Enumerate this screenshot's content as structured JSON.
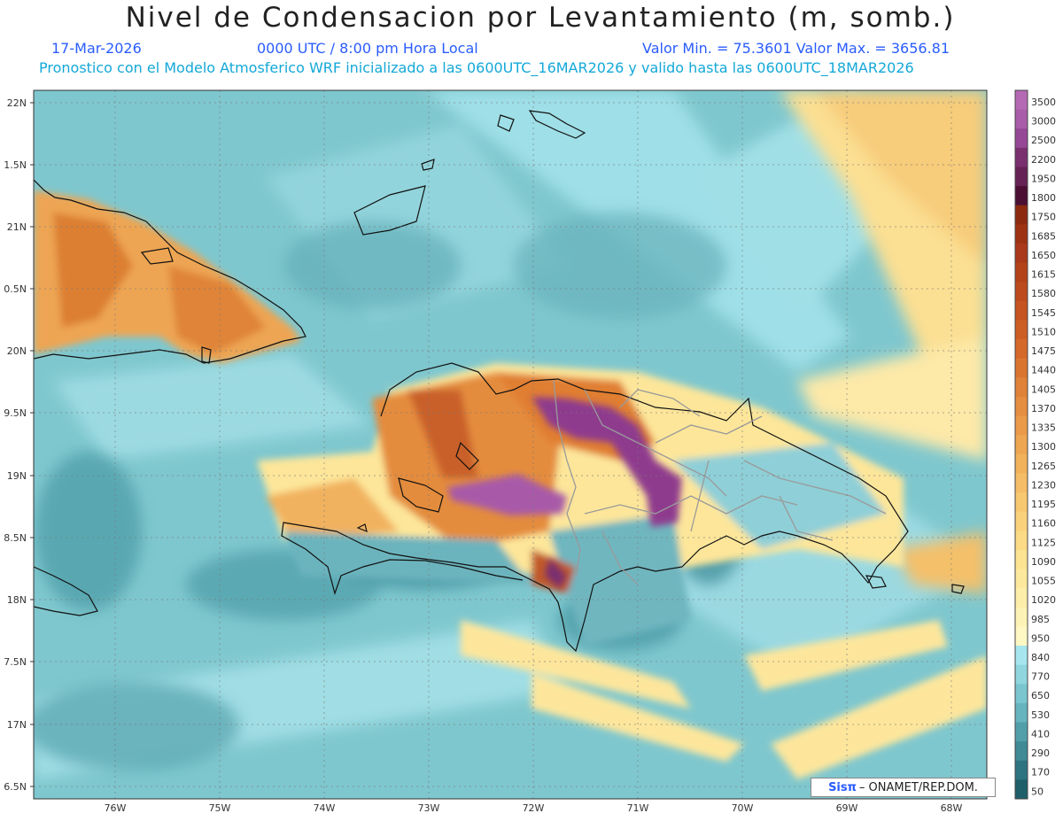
{
  "header": {
    "title": "Nivel de Condensacion por Levantamiento (m, somb.)",
    "date": "17-Mar-2026",
    "time": "0000 UTC / 8:00 pm Hora Local",
    "minmax": "Valor Min. = 75.3601   Valor Max. = 3656.81",
    "model_info": "Pronostico con el Modelo Atmosferico WRF inicializado a las 0600UTC_16MAR2026 y valido hasta las  0600UTC_18MAR2026"
  },
  "axes": {
    "lat_labels": [
      "22N",
      "1.5N",
      "21N",
      "0.5N",
      "20N",
      "9.5N",
      "19N",
      "8.5N",
      "18N",
      "7.5N",
      "17N",
      "6.5N"
    ],
    "lon_labels": [
      "76W",
      "75W",
      "74W",
      "73W",
      "72W",
      "71W",
      "70W",
      "69W",
      "68W"
    ]
  },
  "colorbar": {
    "labels": [
      "3500",
      "3000",
      "2500",
      "2200",
      "1950",
      "1800",
      "1750",
      "1685",
      "1650",
      "1615",
      "1580",
      "1545",
      "1510",
      "1475",
      "1440",
      "1405",
      "1370",
      "1335",
      "1300",
      "1265",
      "1230",
      "1195",
      "1160",
      "1125",
      "1090",
      "1055",
      "1020",
      "985",
      "950",
      "840",
      "770",
      "650",
      "530",
      "410",
      "290",
      "170",
      "50"
    ],
    "colors": [
      "#b569b5",
      "#a95ca9",
      "#964896",
      "#7a2f6f",
      "#662255",
      "#4b0f33",
      "#8c2a10",
      "#9c3212",
      "#a9391a",
      "#b44219",
      "#bd4a1c",
      "#c55420",
      "#cc5e24",
      "#d4692a",
      "#da7530",
      "#e08238",
      "#e58d40",
      "#ea9a48",
      "#ee a651",
      "#f2b25c",
      "#f5bd67",
      "#f8c870",
      "#fad27b",
      "#fbdb86",
      "#fce392",
      "#fde99d",
      "#fdeeaa",
      "#fef3b6",
      "#fff8c4",
      "#a7e6ee",
      "#8fd6de",
      "#7ac6cf",
      "#66b4be",
      "#529faa",
      "#3e8a95",
      "#2d7480",
      "#1f5f6a"
    ]
  },
  "credit": {
    "brand": "Sisπ",
    "text": "– ONAMET/REP.DOM."
  },
  "palette": {
    "ocean": "#79c5cc",
    "ocean_light": "#a8e4ea",
    "ocean_dark": "#4f9ea9",
    "land_orange": "#e08a3a",
    "land_yellow": "#fde79a",
    "high_purple": "#8e3a8a"
  }
}
